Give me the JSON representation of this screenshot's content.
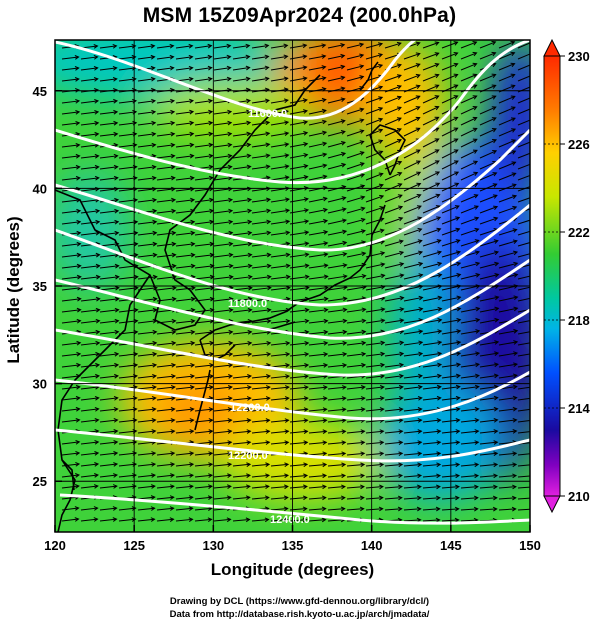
{
  "title": "MSM 15Z09Apr2024 (200.0hPa)",
  "chart_data": {
    "type": "map",
    "xlabel": "Longitude (degrees)",
    "ylabel": "Latitude  (degrees)",
    "xlim": [
      120,
      150
    ],
    "ylim": [
      22.4,
      47.6
    ],
    "x_ticks": [
      "120",
      "125",
      "130",
      "135",
      "140",
      "145",
      "150"
    ],
    "y_ticks": [
      "25",
      "30",
      "35",
      "40",
      "45"
    ],
    "grid": true,
    "fill_variable_range": [
      210,
      230
    ],
    "colorbar_ticks": [
      "230",
      "226",
      "222",
      "218",
      "214",
      "210"
    ],
    "contours": [
      {
        "label": "11600.0"
      },
      {
        "label": "11800.0"
      },
      {
        "label": "12000.0"
      },
      {
        "label": "12200.0"
      },
      {
        "label": "12400.0"
      }
    ],
    "vectors": "wind arrows, predominantly westerly/south-westerly"
  },
  "colors": {
    "warm_max": "#ff3300",
    "mid": "#33cc33",
    "cold_min": "#1a0a99",
    "contour": "#ffffff",
    "coast": "#000000"
  },
  "credits": {
    "line1": "Drawing by DCL (https://www.gfd-dennou.org/library/dcl/)",
    "line2": "Data from http://database.rish.kyoto-u.ac.jp/arch/jmadata/"
  }
}
